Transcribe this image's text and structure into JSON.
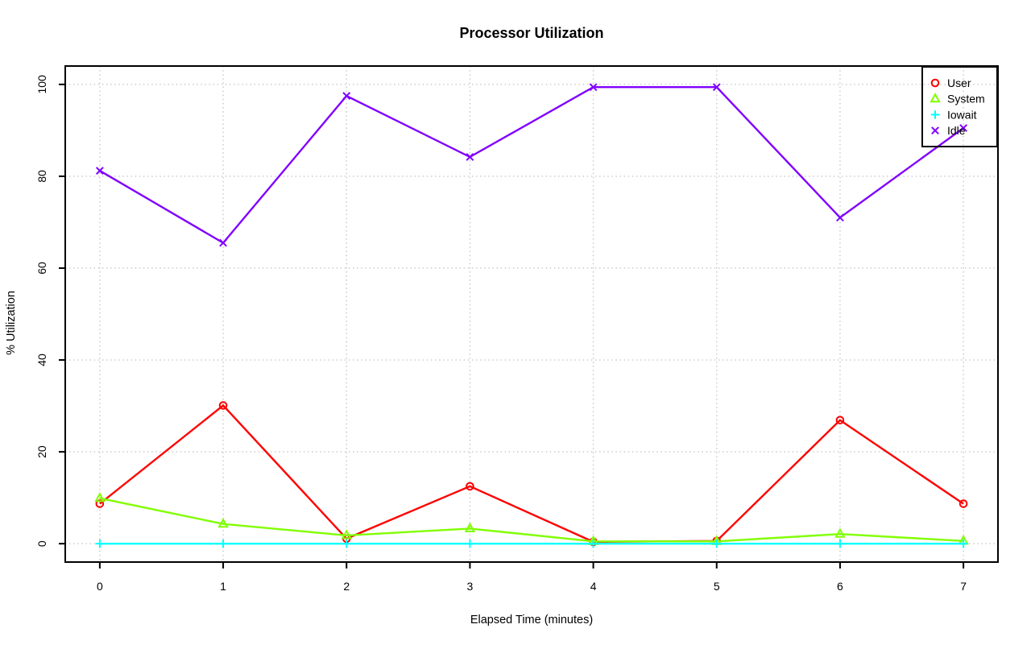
{
  "title": "Processor Utilization",
  "axes": {
    "xlabel": "Elapsed Time (minutes)",
    "ylabel": "% Utilization",
    "x_ticks": [
      0,
      1,
      2,
      3,
      4,
      5,
      6,
      7
    ],
    "y_ticks": [
      0,
      20,
      40,
      60,
      80,
      100
    ]
  },
  "colors": {
    "user": "#ff0000",
    "system": "#80ff00",
    "iowait": "#00ffff",
    "idle": "#8000ff",
    "grid": "#c8c8c8",
    "axis": "#000000"
  },
  "legend": {
    "position": "top-right",
    "entries": [
      "User",
      "System",
      "Iowait",
      "Idle"
    ]
  },
  "chart_data": {
    "type": "line",
    "title": "Processor Utilization",
    "xlabel": "Elapsed Time (minutes)",
    "ylabel": "% Utilization",
    "x": [
      0,
      1,
      2,
      3,
      4,
      5,
      6,
      7
    ],
    "xlim": [
      0,
      7
    ],
    "ylim": [
      0,
      100
    ],
    "grid": true,
    "legend_position": "top-right",
    "series": [
      {
        "name": "User",
        "color": "#ff0000",
        "marker": "circle",
        "values": [
          8.7,
          30.1,
          1.1,
          12.5,
          0.4,
          0.6,
          26.9,
          8.7
        ]
      },
      {
        "name": "System",
        "color": "#80ff00",
        "marker": "triangle",
        "values": [
          9.9,
          4.3,
          1.8,
          3.3,
          0.5,
          0.5,
          2.1,
          0.6
        ]
      },
      {
        "name": "Iowait",
        "color": "#00ffff",
        "marker": "plus",
        "values": [
          0,
          0,
          0,
          0,
          0,
          0,
          0,
          0
        ]
      },
      {
        "name": "Idle",
        "color": "#8000ff",
        "marker": "x",
        "values": [
          81.2,
          65.5,
          97.5,
          84.2,
          99.4,
          99.4,
          71.0,
          90.5
        ]
      }
    ]
  }
}
